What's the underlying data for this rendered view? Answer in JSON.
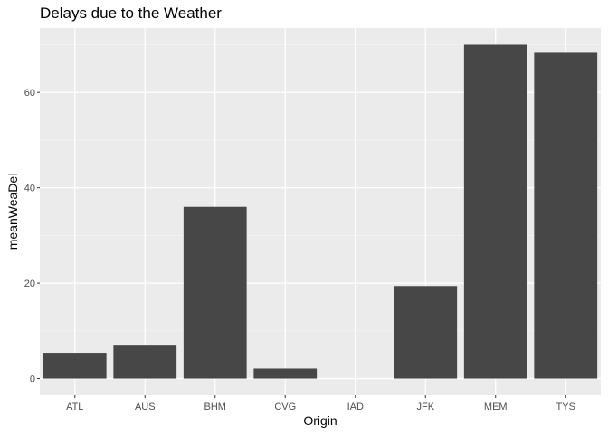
{
  "chart_data": {
    "type": "bar",
    "title": "Delays due to the Weather",
    "xlabel": "Origin",
    "ylabel": "meanWeaDel",
    "categories": [
      "ATL",
      "AUS",
      "BHM",
      "CVG",
      "IAD",
      "JFK",
      "MEM",
      "TYS"
    ],
    "values": [
      5.4,
      6.9,
      36.0,
      2.1,
      0,
      19.4,
      70.0,
      68.3
    ],
    "ylim": [
      -3.5,
      73.5
    ],
    "yticks": [
      0,
      20,
      40,
      60
    ],
    "grid": true,
    "legend": "none",
    "colors": {
      "bar": "#474747",
      "panel": "#ebebeb",
      "grid_major": "#ffffff",
      "grid_minor": "#f5f5f5",
      "tick_text": "#4d4d4d",
      "tick_mark": "#333333"
    }
  }
}
